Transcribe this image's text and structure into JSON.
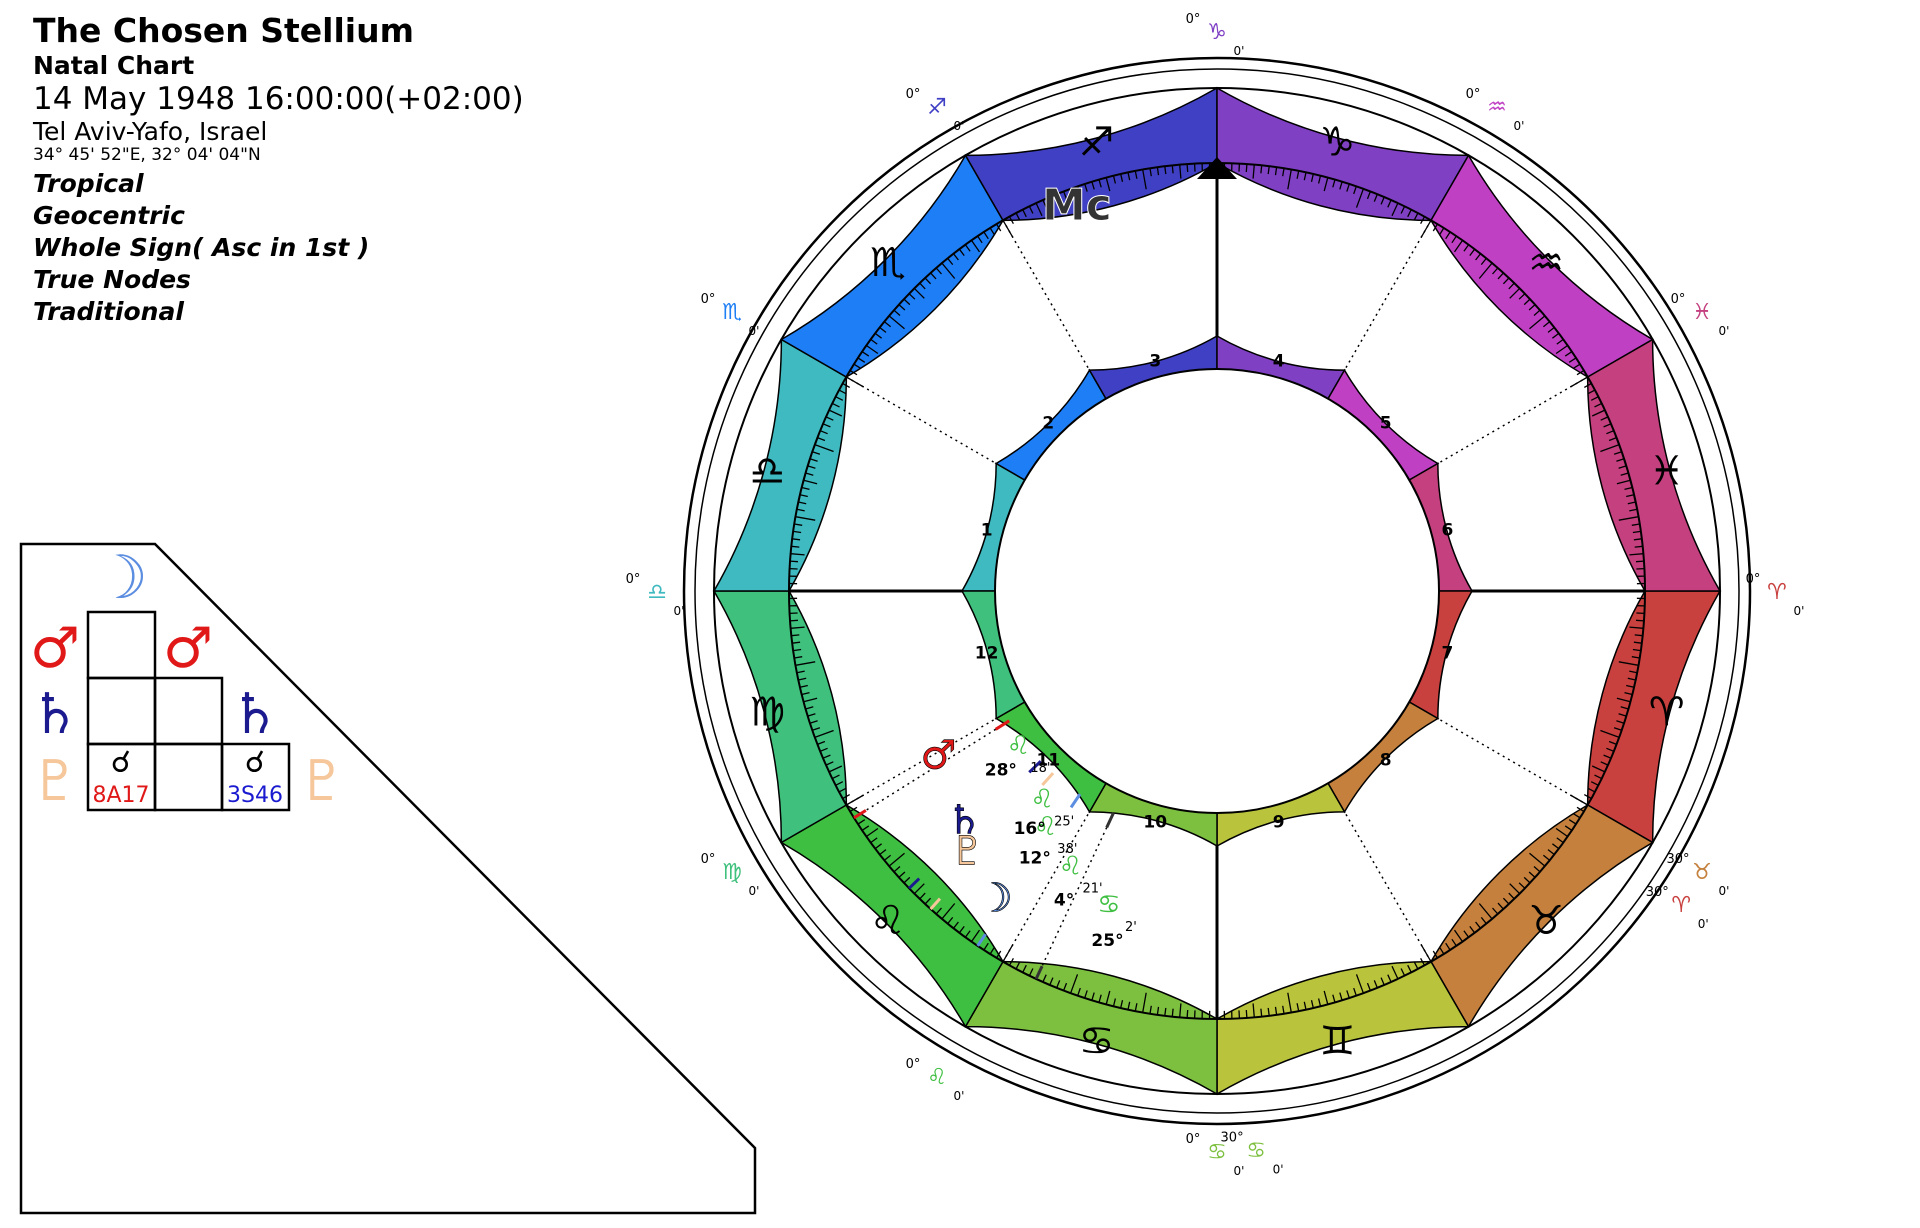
{
  "info": {
    "title": "The Chosen Stellium",
    "chart_type": "Natal Chart",
    "datetime": "14 May 1948 16:00:00(+02:00)",
    "location": "Tel Aviv-Yafo, Israel",
    "coordinates": "34° 45' 52\"E, 32° 04' 04\"N",
    "settings": [
      "Tropical",
      "Geocentric",
      "Whole Sign( Asc in 1st )",
      "True Nodes",
      "Traditional"
    ]
  },
  "colors": {
    "aries": "#c8413f",
    "taurus": "#c4803c",
    "gemini": "#b9c43c",
    "cancer": "#7dc040",
    "leo": "#3fbf41",
    "virgo": "#3fc07d",
    "libra": "#3fbac0",
    "scorpio": "#1e7ef5",
    "sagittarius": "#4040c4",
    "capricorn": "#7f40c4",
    "aquarius": "#c040c4",
    "pisces": "#c4407f",
    "moon": "#5b8de0",
    "mars": "#e01818",
    "saturn": "#1b1b8f",
    "pluto": "#f5c79b",
    "mc": "#333333"
  },
  "wheel": {
    "signs": [
      {
        "name": "aries",
        "glyph": "♈"
      },
      {
        "name": "taurus",
        "glyph": "♉"
      },
      {
        "name": "gemini",
        "glyph": "♊"
      },
      {
        "name": "cancer",
        "glyph": "♋"
      },
      {
        "name": "leo",
        "glyph": "♌"
      },
      {
        "name": "virgo",
        "glyph": "♍"
      },
      {
        "name": "libra",
        "glyph": "♎"
      },
      {
        "name": "scorpio",
        "glyph": "♏"
      },
      {
        "name": "sagittarius",
        "glyph": "♐"
      },
      {
        "name": "capricorn",
        "glyph": "♑"
      },
      {
        "name": "aquarius",
        "glyph": "♒"
      },
      {
        "name": "pisces",
        "glyph": "♓"
      }
    ],
    "houses": [
      "1",
      "2",
      "3",
      "4",
      "5",
      "6",
      "7",
      "8",
      "9",
      "10",
      "11",
      "12"
    ],
    "cusp_labels": [
      {
        "deg": "0°",
        "glyph": "♈",
        "min": "0'"
      },
      {
        "deg": "30°",
        "glyph": "♉",
        "min": "0'"
      },
      {
        "deg": "0°",
        "glyph": "♋",
        "min": "0'"
      },
      {
        "deg": "30°",
        "glyph": "♋",
        "min": "0'"
      },
      {
        "deg": "0°",
        "glyph": "♌",
        "min": "0'"
      },
      {
        "deg": "0°",
        "glyph": "♍",
        "min": "0'"
      },
      {
        "deg": "0°",
        "glyph": "♎",
        "min": "0'"
      },
      {
        "deg": "0°",
        "glyph": "♏",
        "min": "0'"
      },
      {
        "deg": "0°",
        "glyph": "♐",
        "min": "0'"
      },
      {
        "deg": "0°",
        "glyph": "♑",
        "min": "0'"
      },
      {
        "deg": "0°",
        "glyph": "♒",
        "min": "0'"
      },
      {
        "deg": "0°",
        "glyph": "♓",
        "min": "0'"
      },
      {
        "deg": "30°",
        "glyph": "♈",
        "min": "0'"
      }
    ],
    "planets": [
      {
        "name": "mc",
        "label": "Mc",
        "deg": "25°",
        "sign": "♋",
        "min": "2'",
        "lon": 115
      },
      {
        "name": "moon",
        "label": "☽",
        "deg": "4°",
        "sign": "♌",
        "min": "21'",
        "lon": 124
      },
      {
        "name": "pluto",
        "label": "♇",
        "deg": "12°",
        "sign": "♌",
        "min": "38'",
        "lon": 132
      },
      {
        "name": "saturn",
        "label": "♄",
        "deg": "16°",
        "sign": "♌",
        "min": "25'",
        "lon": 136
      },
      {
        "name": "mars",
        "label": "♂",
        "deg": "28°",
        "sign": "♌",
        "min": "18'",
        "lon": 148
      }
    ]
  },
  "aspect_grid": {
    "header": "☽",
    "left_col": [
      "♂",
      "♄",
      "♇"
    ],
    "diag": [
      "♂",
      "♄",
      "♇"
    ],
    "bottom_row": [
      {
        "symbol": "☌",
        "value": "8A17",
        "color": "#e01818"
      },
      {
        "symbol": "",
        "value": ""
      },
      {
        "symbol": "☌",
        "value": "3S46",
        "color": "#1a1ad0"
      }
    ]
  }
}
